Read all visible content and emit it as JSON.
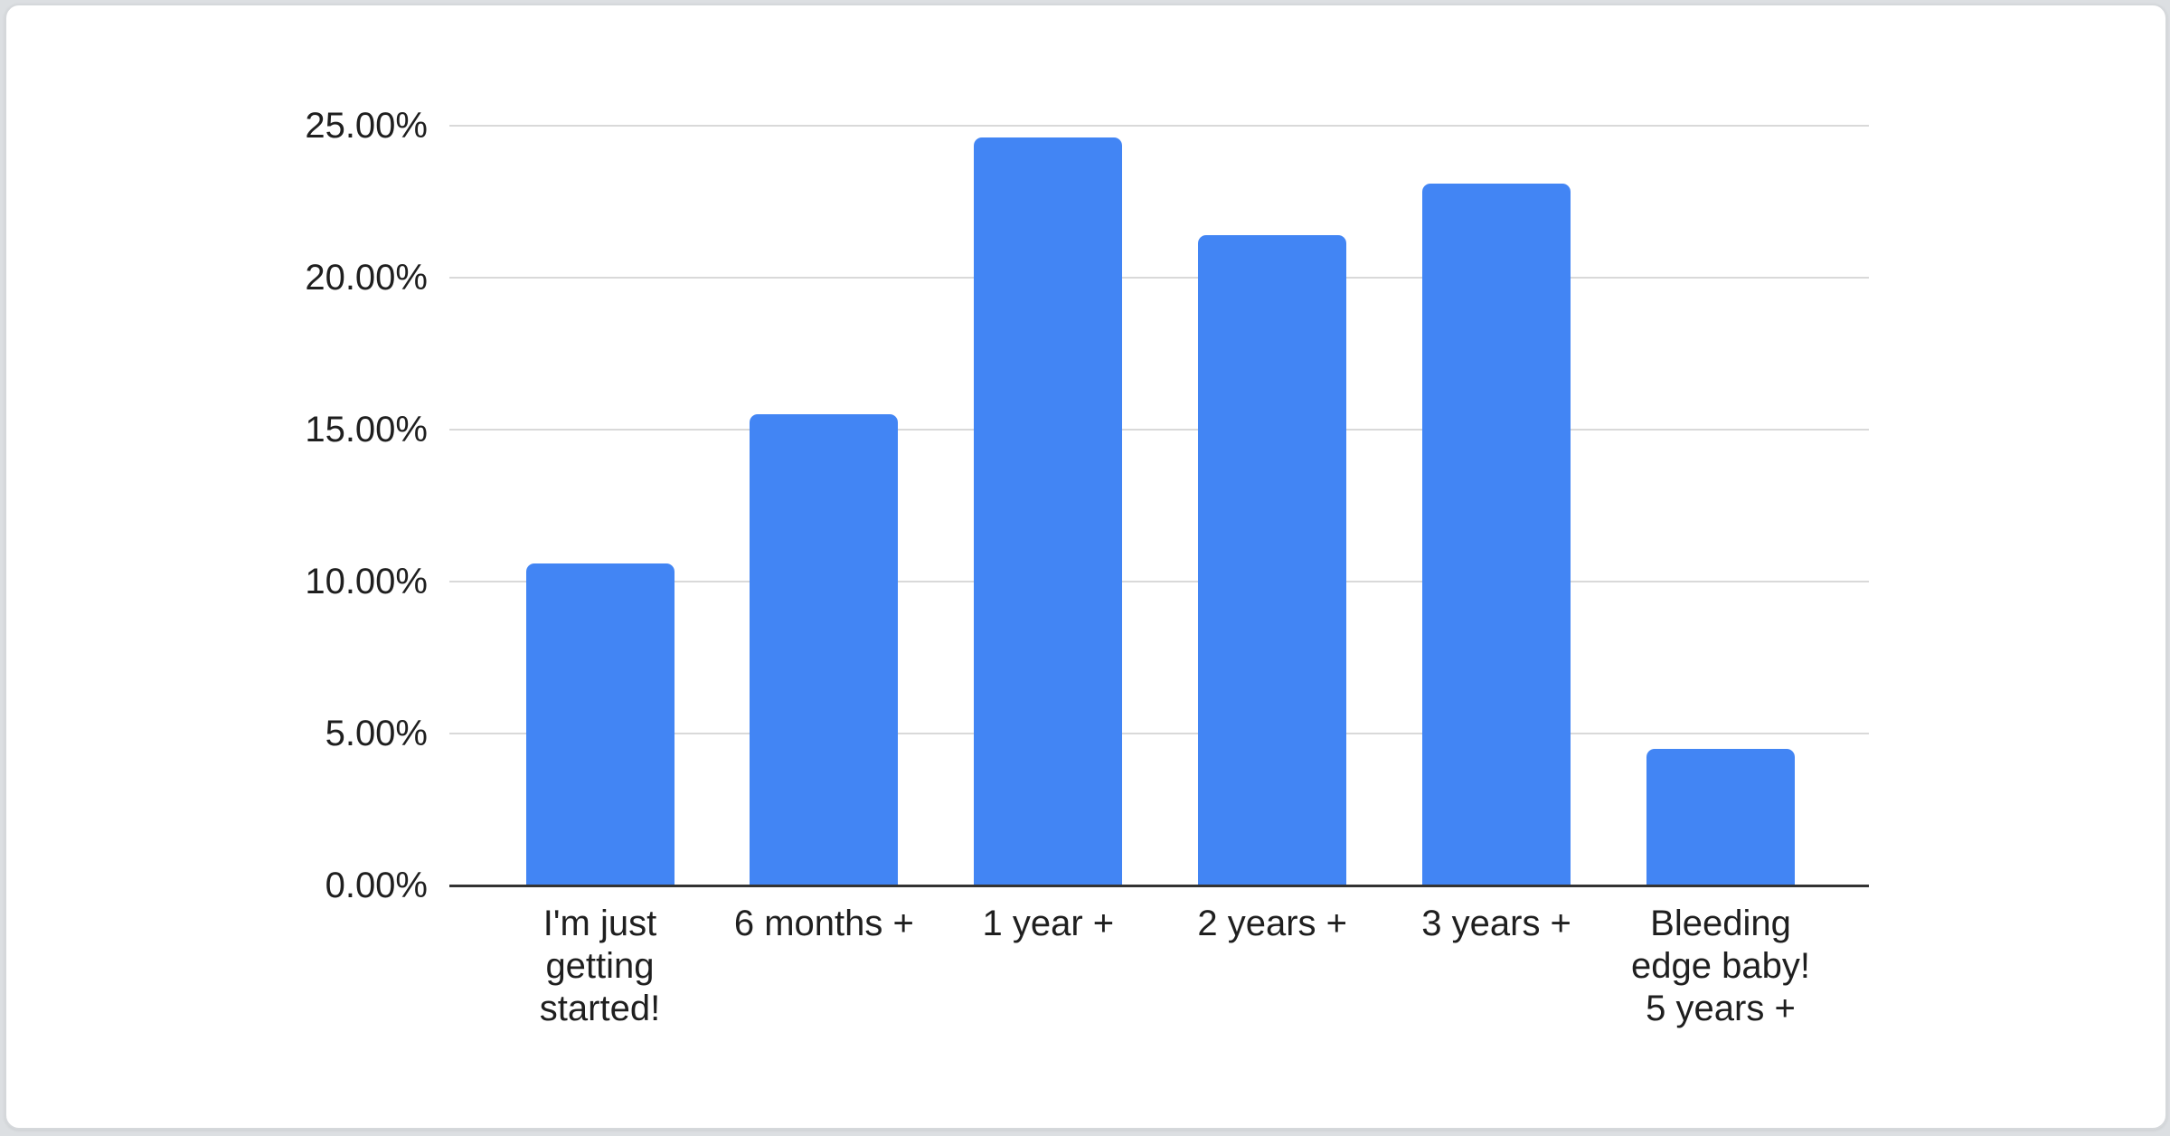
{
  "page": {
    "background_color": "#dcdfe2",
    "card_background_color": "#ffffff",
    "card_border_color": "#d5d8db"
  },
  "colors": {
    "bar": "#4285f4",
    "gridline": "#d9d9d9",
    "axis_line": "#333333",
    "text": "#1f1f1f"
  },
  "chart_data": {
    "type": "bar",
    "categories": [
      "I'm just getting started!",
      "6 months +",
      "1 year +",
      "2 years +",
      "3 years +",
      "Bleeding edge baby! 5 years +"
    ],
    "values": [
      10.6,
      15.5,
      24.6,
      21.4,
      23.1,
      4.5
    ],
    "value_unit": "%",
    "xlabel": "",
    "ylabel": "",
    "ylim": [
      0,
      25
    ],
    "grid": true,
    "legend": "none",
    "y_tick_labels": [
      "25.00%",
      "20.00%",
      "15.00%",
      "10.00%",
      "5.00%",
      "0.00%"
    ],
    "x_labels_display": [
      "I'm just\ngetting\nstarted!",
      "6 months +",
      "1 year +",
      "2 years +",
      "3 years +",
      "Bleeding\nedge baby!\n5 years +"
    ]
  }
}
